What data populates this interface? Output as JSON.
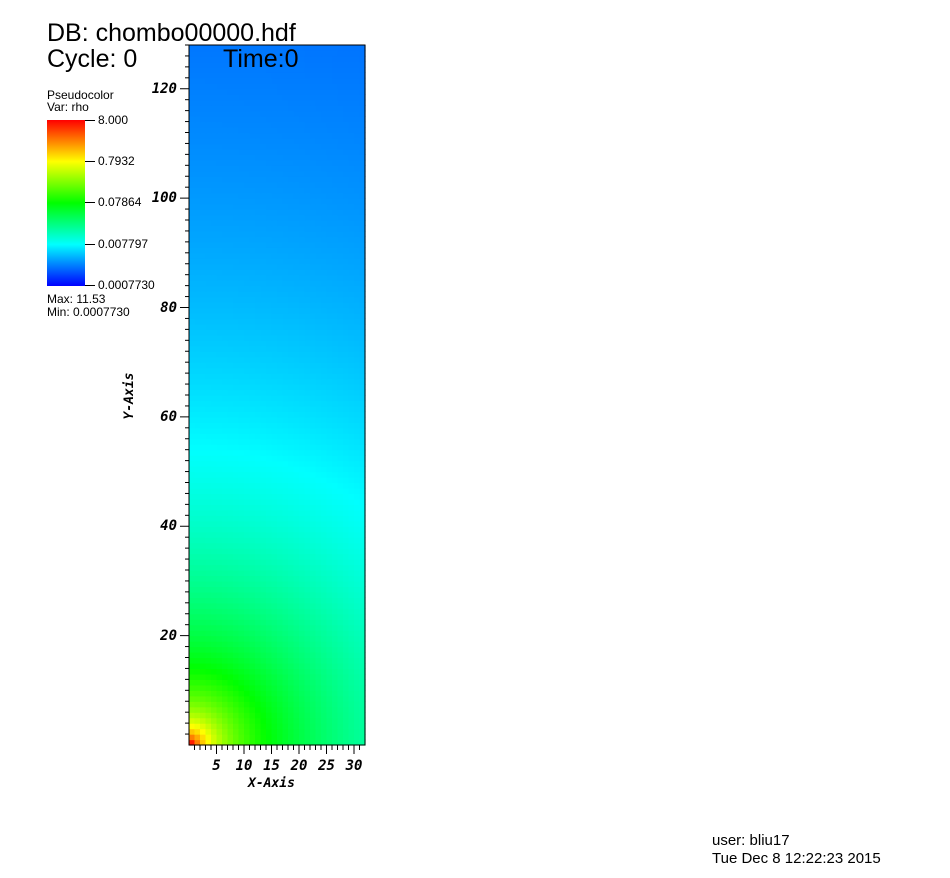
{
  "header": {
    "db_line": "DB: chombo00000.hdf",
    "cycle_line": "Cycle: 0",
    "time_line": "Time:0"
  },
  "legend": {
    "title": "Pseudocolor",
    "var_line": "Var: rho",
    "labels": [
      "8.000",
      "0.7932",
      "0.07864",
      "0.007797",
      "0.0007730"
    ],
    "max_line": "Max:  11.53",
    "min_line": "Min:  0.0007730",
    "colors": [
      "#ff0000",
      "#ffff00",
      "#00ff00",
      "#00ffff",
      "#0000ff"
    ]
  },
  "chart_data": {
    "type": "heatmap",
    "title": "",
    "xlabel": "X-Axis",
    "ylabel": "Y-Axis",
    "xlim": [
      0,
      32
    ],
    "ylim": [
      0,
      128
    ],
    "x_ticks": [
      5,
      10,
      15,
      20,
      25,
      30
    ],
    "x_tick_labels": [
      "5",
      "10",
      "15",
      "20",
      "25",
      "30"
    ],
    "y_ticks": [
      20,
      40,
      60,
      80,
      100,
      120
    ],
    "y_tick_labels": [
      "20",
      "40",
      "60",
      "80",
      "100",
      "120"
    ],
    "variable": "rho",
    "color_scale": "log",
    "value_range": [
      0.000773,
      11.53
    ],
    "colorbar_range": [
      0.000773,
      8.0
    ],
    "grid": false
  },
  "footer": {
    "user_line": "user: bliu17",
    "date_line": "Tue Dec  8 12:22:23 2015"
  }
}
